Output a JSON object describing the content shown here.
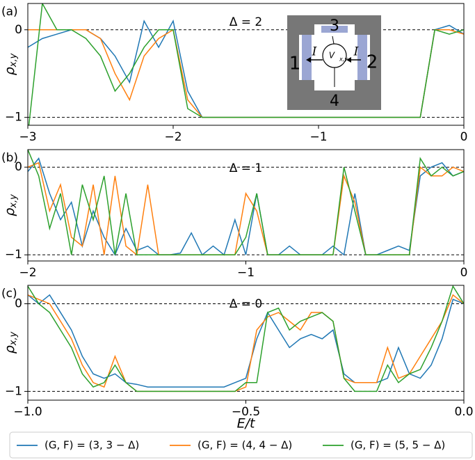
{
  "chart_data": [
    {
      "type": "line",
      "panel_label": "(a)",
      "title": "Δ = 2",
      "ylabel": "ρ",
      "ylabel_sub": "x,y",
      "xlim": [
        -3,
        0
      ],
      "xticks": [
        {
          "value": -3,
          "label": "−3"
        },
        {
          "value": -2,
          "label": "−2"
        },
        {
          "value": -1,
          "label": "−1"
        },
        0
      ],
      "ylim": [
        -1.09,
        0.3
      ],
      "yticks": [
        0,
        {
          "value": -1,
          "label": "−1"
        }
      ],
      "hlines": [
        0,
        -1
      ],
      "inset_labels": [
        "3",
        "1",
        "2",
        "4",
        "I",
        "I",
        "V",
        "x,y"
      ],
      "x": [
        -3,
        -2.9,
        -2.8,
        -2.7,
        -2.6,
        -2.5,
        -2.4,
        -2.3,
        -2.2,
        -2.1,
        -2.0,
        -1.9,
        -1.8,
        -1.7,
        -1.6,
        -1.5,
        -1.4,
        -1.3,
        -1.2,
        -1.1,
        -1.0,
        -0.9,
        -0.8,
        -0.7,
        -0.6,
        -0.5,
        -0.4,
        -0.3,
        -0.2,
        -0.1,
        0
      ],
      "series": [
        {
          "name": "(G, F) = (3, 3 − Δ)",
          "color": "#1f77b4",
          "values": [
            -0.2,
            -0.1,
            -0.05,
            0,
            0,
            -0.1,
            -0.3,
            -0.6,
            0.1,
            -0.2,
            0.1,
            -0.7,
            -1,
            -1,
            -1,
            -1,
            -1,
            -1,
            -1,
            -1,
            -1,
            -1,
            -1,
            -1,
            -1,
            -1,
            -1,
            -1,
            0,
            0.05,
            -0.05
          ]
        },
        {
          "name": "(G, F) = (4, 4 − Δ)",
          "color": "#ff7f0e",
          "values": [
            0,
            0,
            0,
            0,
            0,
            -0.1,
            -0.5,
            -0.8,
            -0.3,
            -0.1,
            0,
            -0.8,
            -1,
            -1,
            -1,
            -1,
            -1,
            -1,
            -1,
            -1,
            -1,
            -1,
            -1,
            -1,
            -1,
            -1,
            -1,
            -1,
            0,
            0,
            -0.05
          ]
        },
        {
          "name": "(G, F) = (5, 5 − Δ)",
          "color": "#2ca02c",
          "values": [
            -1.2,
            0.3,
            0,
            0,
            -0.1,
            -0.3,
            -0.7,
            -0.5,
            -0.2,
            0,
            0,
            -0.9,
            -1,
            -1,
            -1,
            -1,
            -1,
            -1,
            -1,
            -1,
            -1,
            -1,
            -1,
            -1,
            -1,
            -1,
            -1,
            -1,
            0,
            -0.05,
            0
          ]
        }
      ]
    },
    {
      "type": "line",
      "panel_label": "(b)",
      "title": "Δ = 1",
      "ylabel": "ρ",
      "ylabel_sub": "x,y",
      "xlim": [
        -2,
        0
      ],
      "xticks": [
        {
          "value": -2,
          "label": "−2"
        },
        {
          "value": -1,
          "label": "−1"
        },
        0
      ],
      "ylim": [
        -1.07,
        0.2
      ],
      "yticks": [
        0,
        {
          "value": -1,
          "label": "−1"
        }
      ],
      "hlines": [
        0,
        -1
      ],
      "x": [
        -2,
        -1.95,
        -1.9,
        -1.85,
        -1.8,
        -1.75,
        -1.7,
        -1.65,
        -1.6,
        -1.55,
        -1.5,
        -1.45,
        -1.4,
        -1.35,
        -1.3,
        -1.25,
        -1.2,
        -1.15,
        -1.1,
        -1.05,
        -1,
        -0.95,
        -0.9,
        -0.85,
        -0.8,
        -0.75,
        -0.7,
        -0.65,
        -0.6,
        -0.55,
        -0.5,
        -0.45,
        -0.4,
        -0.35,
        -0.3,
        -0.25,
        -0.2,
        -0.15,
        -0.1,
        -0.05,
        0
      ],
      "series": [
        {
          "color": "#1f77b4",
          "values": [
            -0.05,
            0.1,
            -0.3,
            -0.6,
            -0.4,
            -0.9,
            -0.5,
            -0.8,
            -1,
            -0.7,
            -0.95,
            -0.9,
            -1,
            -1,
            -0.98,
            -0.75,
            -1,
            -0.9,
            -1,
            -0.6,
            -1,
            -0.3,
            -1,
            -1,
            -0.9,
            -1,
            -1,
            -1,
            -0.9,
            -1,
            -0.3,
            -1,
            -1,
            -0.95,
            -0.9,
            -0.95,
            -0.1,
            0,
            0.05,
            -0.1,
            -0.05
          ]
        },
        {
          "color": "#ff7f0e",
          "values": [
            0,
            0.05,
            -0.5,
            -0.2,
            -0.8,
            -0.9,
            -0.2,
            -1,
            -0.1,
            -0.9,
            -1,
            -0.2,
            -1,
            -1,
            -1,
            -1,
            -1,
            -1,
            -1,
            -1,
            -0.3,
            -0.5,
            -1,
            -1,
            -1,
            -1,
            -1,
            -1,
            -1,
            -0.1,
            -0.4,
            -1,
            -1,
            -1,
            -1,
            -1,
            0,
            -0.1,
            -0.1,
            0,
            -0.05
          ]
        },
        {
          "color": "#2ca02c",
          "values": [
            0.2,
            -0.1,
            -0.7,
            -0.3,
            -1,
            -0.2,
            -0.6,
            -0.1,
            -1,
            -0.3,
            -1,
            -1,
            -1,
            -1,
            -1,
            -1,
            -1,
            -1,
            -1,
            -1,
            -0.8,
            -0.3,
            -1,
            -1,
            -1,
            -1,
            -1,
            -1,
            -1,
            0,
            -0.5,
            -1,
            -1,
            -1,
            -1,
            -1,
            0.1,
            -0.1,
            0,
            -0.1,
            -0.05
          ]
        }
      ]
    },
    {
      "type": "line",
      "panel_label": "(c)",
      "title": "Δ = 0",
      "ylabel": "ρ",
      "ylabel_sub": "x,y",
      "xlabel": "E/t",
      "xlim": [
        -1,
        0
      ],
      "xticks": [
        {
          "value": -1,
          "label": "−1.0"
        },
        {
          "value": -0.5,
          "label": "−0.5"
        },
        {
          "value": 0,
          "label": "0.0"
        }
      ],
      "ylim": [
        -1.1,
        0.21
      ],
      "yticks": [
        0,
        {
          "value": -1,
          "label": "−1"
        }
      ],
      "hlines": [
        0,
        -1
      ],
      "x": [
        -1,
        -0.975,
        -0.95,
        -0.925,
        -0.9,
        -0.875,
        -0.85,
        -0.825,
        -0.8,
        -0.775,
        -0.75,
        -0.725,
        -0.7,
        -0.675,
        -0.65,
        -0.625,
        -0.6,
        -0.575,
        -0.55,
        -0.525,
        -0.5,
        -0.475,
        -0.45,
        -0.425,
        -0.4,
        -0.375,
        -0.35,
        -0.325,
        -0.3,
        -0.275,
        -0.25,
        -0.225,
        -0.2,
        -0.175,
        -0.15,
        -0.125,
        -0.1,
        -0.075,
        -0.05,
        -0.025,
        0
      ],
      "series": [
        {
          "color": "#1f77b4",
          "values": [
            0.1,
            0,
            0.1,
            -0.1,
            -0.3,
            -0.6,
            -0.8,
            -0.85,
            -0.8,
            -0.9,
            -0.92,
            -0.95,
            -0.95,
            -0.95,
            -0.95,
            -0.95,
            -0.95,
            -0.95,
            -0.95,
            -0.9,
            -0.85,
            -0.4,
            -0.1,
            -0.3,
            -0.5,
            -0.4,
            -0.35,
            -0.4,
            -0.3,
            -0.8,
            -0.9,
            -0.9,
            -0.9,
            -0.85,
            -0.5,
            -0.8,
            -0.85,
            -0.7,
            -0.4,
            0.05,
            0
          ]
        },
        {
          "color": "#ff7f0e",
          "values": [
            0.1,
            0.05,
            0,
            -0.2,
            -0.4,
            -0.7,
            -0.9,
            -0.95,
            -0.6,
            -0.9,
            -1,
            -1,
            -1,
            -1,
            -1,
            -1,
            -1,
            -1,
            -1,
            -1,
            -0.95,
            -0.3,
            -0.15,
            -0.1,
            -0.2,
            -0.3,
            -0.1,
            -0.1,
            -0.2,
            -0.85,
            -0.9,
            -0.9,
            -0.9,
            -0.5,
            -0.85,
            -0.8,
            -0.6,
            -0.4,
            -0.2,
            0.1,
            0
          ]
        },
        {
          "color": "#2ca02c",
          "values": [
            0.2,
            0,
            -0.1,
            -0.3,
            -0.5,
            -0.8,
            -0.95,
            -0.9,
            -0.7,
            -0.9,
            -1,
            -1,
            -1,
            -1,
            -1,
            -1,
            -1,
            -1,
            -1,
            -1,
            -0.9,
            -0.9,
            -0.1,
            -0.05,
            -0.3,
            -0.2,
            -0.15,
            -0.1,
            -0.2,
            -0.85,
            -1,
            -1,
            -1,
            -0.7,
            -0.9,
            -0.8,
            -0.75,
            -0.5,
            -0.2,
            0.2,
            0
          ]
        }
      ]
    }
  ]
}
